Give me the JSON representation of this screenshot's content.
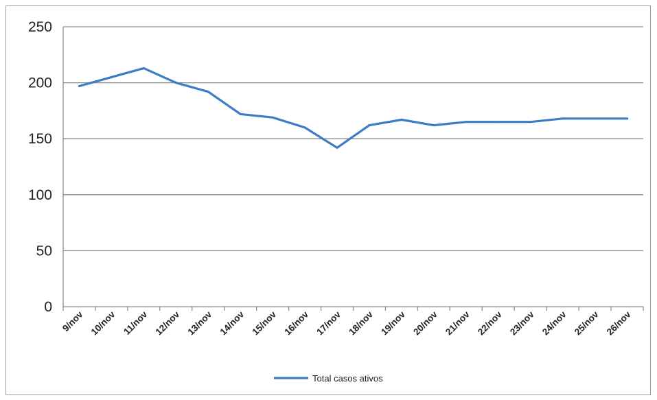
{
  "chart_data": {
    "type": "line",
    "categories": [
      "9/nov",
      "10/nov",
      "11/nov",
      "12/nov",
      "13/nov",
      "14/nov",
      "15/nov",
      "16/nov",
      "17/nov",
      "18/nov",
      "19/nov",
      "20/nov",
      "21/nov",
      "22/nov",
      "23/nov",
      "24/nov",
      "25/nov",
      "26/nov"
    ],
    "series": [
      {
        "name": "Total casos ativos",
        "color": "#3b7cc4",
        "values": [
          197,
          205,
          213,
          200,
          192,
          172,
          169,
          160,
          142,
          162,
          167,
          162,
          165,
          165,
          165,
          168,
          168,
          168
        ]
      }
    ],
    "ylim": [
      0,
      250
    ],
    "yticks": [
      0,
      50,
      100,
      150,
      200,
      250
    ],
    "grid": true,
    "legend_position": "bottom",
    "title": "",
    "xlabel": "",
    "ylabel": ""
  }
}
